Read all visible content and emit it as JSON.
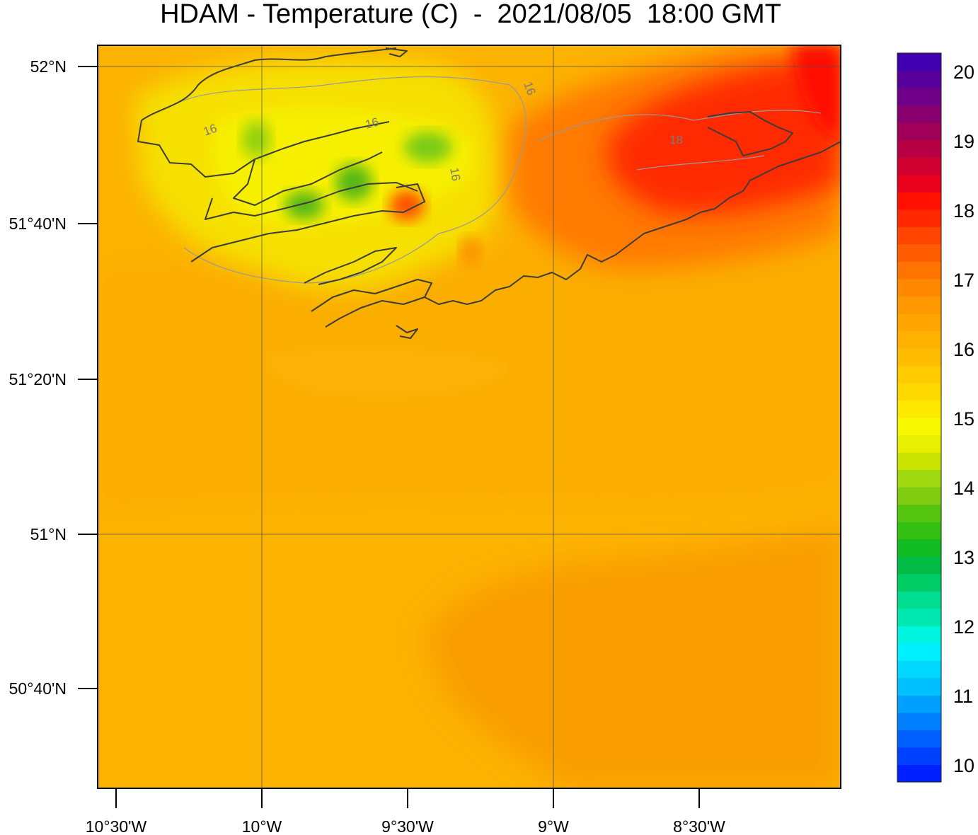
{
  "title": "HDAM - Temperature (C)  -  2021/08/05  18:00 GMT",
  "map": {
    "lat_ticks": [
      "52°N",
      "51°40'N",
      "51°20'N",
      "51°N",
      "50°40'N"
    ],
    "lon_ticks": [
      "10°30'W",
      "10°W",
      "9°30'W",
      "9°W",
      "8°30'W"
    ],
    "contour_labels": [
      "16",
      "16",
      "16",
      "16",
      "18"
    ],
    "colors": {
      "base_field": "#fcb200",
      "south_warm": "#fa9e00",
      "coast_cool": "#f6f000",
      "min_patch": "#55b718",
      "max_region": "#ff2a00",
      "coastline": "#3c3c3c",
      "gridline": "#555555"
    }
  },
  "colorbar": {
    "labels": [
      "20",
      "19",
      "18",
      "17",
      "16",
      "15",
      "14",
      "13",
      "12",
      "11",
      "10"
    ],
    "colors": [
      "#0020ff",
      "#0040ff",
      "#0060ff",
      "#0080ff",
      "#00a0ff",
      "#00c0ff",
      "#00d8ff",
      "#00f0ff",
      "#00f5e0",
      "#00e8b0",
      "#00dd90",
      "#00cc66",
      "#00bb44",
      "#11bb22",
      "#33c010",
      "#55c510",
      "#80cc10",
      "#a0d810",
      "#c8e400",
      "#e8f000",
      "#f8f800",
      "#ffe800",
      "#ffd800",
      "#ffca00",
      "#ffbc00",
      "#ffb000",
      "#ffa400",
      "#ff9800",
      "#ff8800",
      "#ff7400",
      "#ff5c00",
      "#ff4400",
      "#ff2800",
      "#ff1000",
      "#e8001c",
      "#d00030",
      "#b80044",
      "#a00058",
      "#880070",
      "#700088",
      "#58009c",
      "#4000b0"
    ]
  }
}
